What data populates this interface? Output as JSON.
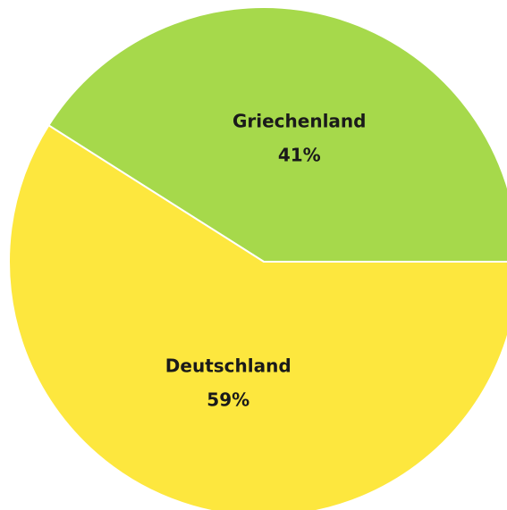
{
  "chart_data": {
    "type": "pie",
    "categories": [
      "Griechenland",
      "Deutschland"
    ],
    "values": [
      41,
      59
    ],
    "value_labels": [
      "41%",
      "59%"
    ],
    "colors": [
      "#a6d94b",
      "#fde73e"
    ]
  }
}
